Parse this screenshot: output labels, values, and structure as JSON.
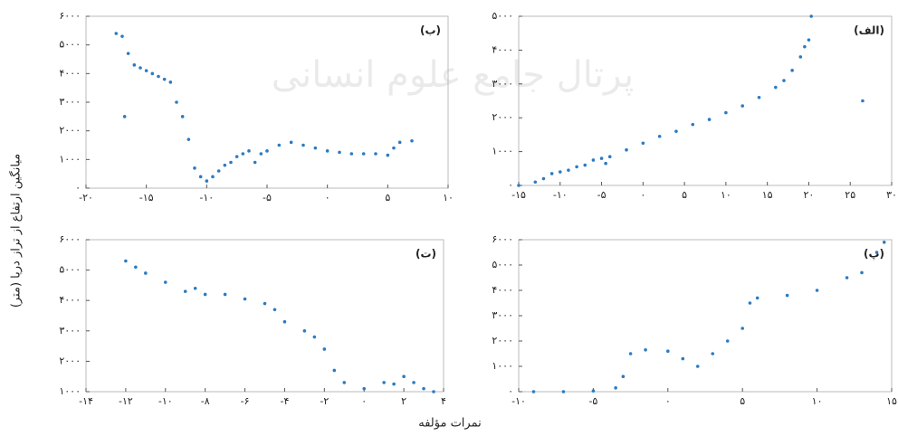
{
  "watermark": "پرتال جامع علوم انسانی",
  "y_label": "میانگین ارتفاع از تراز دریا (متر)",
  "x_label": "نمرات مؤلفه",
  "chart_data": [
    {
      "type": "scatter",
      "title": "(ب)",
      "color": "#2b7bc4",
      "x": [
        -17.5,
        -17,
        -16.8,
        -16.5,
        -16,
        -15.5,
        -15,
        -14.5,
        -14,
        -13.5,
        -13,
        -12.5,
        -12,
        -11.5,
        -11,
        -10.5,
        -10,
        -9.5,
        -9,
        -8.5,
        -8,
        -7.5,
        -7,
        -6.5,
        -6,
        -5.5,
        -5,
        -4,
        -3,
        -2,
        -1,
        0,
        1,
        2,
        3,
        4,
        5,
        5.5,
        6,
        7
      ],
      "values": [
        5400,
        5300,
        2500,
        4700,
        4300,
        4200,
        4100,
        4000,
        3900,
        3800,
        3700,
        3000,
        2500,
        1700,
        700,
        400,
        250,
        400,
        600,
        800,
        900,
        1100,
        1200,
        1300,
        900,
        1200,
        1300,
        1500,
        1600,
        1500,
        1400,
        1300,
        1250,
        1200,
        1200,
        1200,
        1150,
        1400,
        1600,
        1650
      ],
      "xlim": [
        -20,
        10
      ],
      "ylim": [
        0,
        6000
      ],
      "xticks": [
        {
          "value": -20,
          "label": "-۲۰"
        },
        {
          "value": -15,
          "label": "-۱۵"
        },
        {
          "value": -10,
          "label": "-۱۰"
        },
        {
          "value": -5,
          "label": "-۵"
        },
        {
          "value": 0,
          "label": "۰"
        },
        {
          "value": 5,
          "label": "۵"
        },
        {
          "value": 10,
          "label": "۱۰"
        }
      ],
      "yticks": [
        {
          "value": 0,
          "label": "۰"
        },
        {
          "value": 1000,
          "label": "۱۰۰۰"
        },
        {
          "value": 2000,
          "label": "۲۰۰۰"
        },
        {
          "value": 3000,
          "label": "۳۰۰۰"
        },
        {
          "value": 4000,
          "label": "۴۰۰۰"
        },
        {
          "value": 5000,
          "label": "۵۰۰۰"
        },
        {
          "value": 6000,
          "label": "۶۰۰۰"
        }
      ]
    },
    {
      "type": "scatter",
      "title": "(الف)",
      "color": "#2b7bc4",
      "x": [
        -15,
        -13,
        -12,
        -11,
        -10,
        -9,
        -8,
        -7,
        -6,
        -5,
        -4.5,
        -4,
        -2,
        0,
        2,
        4,
        6,
        8,
        10,
        12,
        14,
        16,
        17,
        18,
        19,
        19.5,
        20,
        20.3,
        26.5
      ],
      "values": [
        0,
        100,
        200,
        350,
        400,
        450,
        550,
        600,
        750,
        800,
        650,
        850,
        1050,
        1250,
        1450,
        1600,
        1800,
        1950,
        2150,
        2350,
        2600,
        2900,
        3100,
        3400,
        3800,
        4100,
        4300,
        5000,
        2500
      ],
      "xlim": [
        -15,
        30
      ],
      "ylim": [
        0,
        5000
      ],
      "xticks": [
        {
          "value": -15,
          "label": "-۱۵"
        },
        {
          "value": -10,
          "label": "-۱۰"
        },
        {
          "value": -5,
          "label": "-۵"
        },
        {
          "value": 0,
          "label": "۰"
        },
        {
          "value": 5,
          "label": "۵"
        },
        {
          "value": 10,
          "label": "۱۰"
        },
        {
          "value": 15,
          "label": "۱۵"
        },
        {
          "value": 20,
          "label": "۲۰"
        },
        {
          "value": 25,
          "label": "۲۵"
        },
        {
          "value": 30,
          "label": "۳۰"
        }
      ],
      "yticks": [
        {
          "value": 0,
          "label": "۰"
        },
        {
          "value": 1000,
          "label": "۱۰۰۰"
        },
        {
          "value": 2000,
          "label": "۲۰۰۰"
        },
        {
          "value": 3000,
          "label": "۳۰۰۰"
        },
        {
          "value": 4000,
          "label": "۴۰۰۰"
        },
        {
          "value": 5000,
          "label": "۵۰۰۰"
        }
      ]
    },
    {
      "type": "scatter",
      "title": "(ت)",
      "color": "#2b7bc4",
      "x": [
        -12,
        -11.5,
        -11,
        -10,
        -9,
        -8.5,
        -8,
        -7,
        -6,
        -5,
        -4.5,
        -4,
        -3,
        -2.5,
        -2,
        -1.5,
        -1,
        0,
        1,
        1.5,
        2,
        2.5,
        3,
        3.5
      ],
      "values": [
        5300,
        5100,
        4900,
        4600,
        4300,
        4400,
        4200,
        4200,
        4050,
        3900,
        3700,
        3300,
        3000,
        2800,
        2400,
        1700,
        1300,
        1100,
        1300,
        1250,
        1500,
        1300,
        1100,
        1000
      ],
      "xlim": [
        -14,
        4
      ],
      "ylim": [
        1000,
        6000
      ],
      "xticks": [
        {
          "value": -14,
          "label": "-۱۴"
        },
        {
          "value": -12,
          "label": "-۱۲"
        },
        {
          "value": -10,
          "label": "-۱۰"
        },
        {
          "value": -8,
          "label": "-۸"
        },
        {
          "value": -6,
          "label": "-۶"
        },
        {
          "value": -4,
          "label": "-۴"
        },
        {
          "value": -2,
          "label": "-۲"
        },
        {
          "value": 0,
          "label": "۰"
        },
        {
          "value": 2,
          "label": "۲"
        },
        {
          "value": 4,
          "label": "۴"
        }
      ],
      "yticks": [
        {
          "value": 1000,
          "label": "۱۰۰۰"
        },
        {
          "value": 2000,
          "label": "۲۰۰۰"
        },
        {
          "value": 3000,
          "label": "۳۰۰۰"
        },
        {
          "value": 4000,
          "label": "۴۰۰۰"
        },
        {
          "value": 5000,
          "label": "۵۰۰۰"
        },
        {
          "value": 6000,
          "label": "۶۰۰۰"
        }
      ]
    },
    {
      "type": "scatter",
      "title": "(پ)",
      "color": "#2b7bc4",
      "x": [
        -9,
        -7,
        -5,
        -3.5,
        -3,
        -2.5,
        -1.5,
        0,
        1,
        2,
        3,
        4,
        5,
        5.5,
        6,
        8,
        10,
        12,
        13,
        14,
        14.5
      ],
      "values": [
        0,
        0,
        30,
        150,
        600,
        1500,
        1650,
        1600,
        1300,
        1000,
        1500,
        2000,
        2500,
        3500,
        3700,
        3800,
        4000,
        4500,
        4700,
        5500,
        5900
      ],
      "xlim": [
        -10,
        15
      ],
      "ylim": [
        0,
        6000
      ],
      "xticks": [
        {
          "value": -10,
          "label": "-۱۰"
        },
        {
          "value": -5,
          "label": "-۵"
        },
        {
          "value": 0,
          "label": "۰"
        },
        {
          "value": 5,
          "label": "۵"
        },
        {
          "value": 10,
          "label": "۱۰"
        },
        {
          "value": 15,
          "label": "۱۵"
        }
      ],
      "yticks": [
        {
          "value": 0,
          "label": "۰"
        },
        {
          "value": 1000,
          "label": "۱۰۰۰"
        },
        {
          "value": 2000,
          "label": "۲۰۰۰"
        },
        {
          "value": 3000,
          "label": "۳۰۰۰"
        },
        {
          "value": 4000,
          "label": "۴۰۰۰"
        },
        {
          "value": 5000,
          "label": "۵۰۰۰"
        },
        {
          "value": 6000,
          "label": "۶۰۰۰"
        }
      ]
    }
  ]
}
